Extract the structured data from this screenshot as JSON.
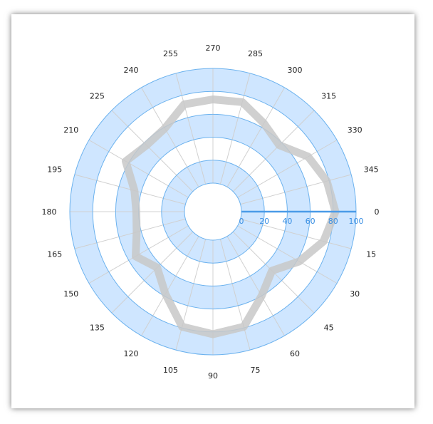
{
  "chart_data": {
    "type": "polar-line",
    "angle_axis": {
      "min": 0,
      "max": 360,
      "step": 15,
      "direction": "clockwise",
      "zero_position": "right",
      "tick_labels": [
        "0",
        "15",
        "30",
        "45",
        "60",
        "75",
        "90",
        "105",
        "120",
        "135",
        "150",
        "165",
        "180",
        "195",
        "210",
        "225",
        "240",
        "255",
        "270",
        "285",
        "300",
        "315",
        "330",
        "345"
      ]
    },
    "radial_axis": {
      "min": 0,
      "max": 100,
      "interval": 20,
      "tick_labels": [
        "0",
        "20",
        "40",
        "60",
        "80",
        "100"
      ],
      "axis_angle": 0,
      "alternating_band_fill": true,
      "grid": true
    },
    "series": [
      {
        "points": [
          {
            "angle": 0,
            "r": 82
          },
          {
            "angle": 15,
            "r": 75
          },
          {
            "angle": 30,
            "r": 62
          },
          {
            "angle": 45,
            "r": 48
          },
          {
            "angle": 60,
            "r": 60
          },
          {
            "angle": 75,
            "r": 79
          },
          {
            "angle": 90,
            "r": 82
          },
          {
            "angle": 105,
            "r": 79
          },
          {
            "angle": 120,
            "r": 58
          },
          {
            "angle": 135,
            "r": 44
          },
          {
            "angle": 150,
            "r": 53
          },
          {
            "angle": 165,
            "r": 44
          },
          {
            "angle": 180,
            "r": 42
          },
          {
            "angle": 195,
            "r": 46
          },
          {
            "angle": 210,
            "r": 63
          },
          {
            "angle": 225,
            "r": 57
          },
          {
            "angle": 240,
            "r": 59
          },
          {
            "angle": 255,
            "r": 72
          },
          {
            "angle": 270,
            "r": 73
          },
          {
            "angle": 285,
            "r": 74
          },
          {
            "angle": 300,
            "r": 64
          },
          {
            "angle": 315,
            "r": 57
          },
          {
            "angle": 330,
            "r": 71
          },
          {
            "angle": 345,
            "r": 78
          }
        ]
      }
    ],
    "colors": {
      "band_fill": "#cfe6ff",
      "grid_line": "#6cb2ee",
      "spoke_line": "#d0d0d0",
      "radial_axis_line": "#4a9be8",
      "radial_axis_text": "#3a8fe3",
      "series_stroke": "#c8c8c8",
      "label_text": "#222222"
    }
  }
}
